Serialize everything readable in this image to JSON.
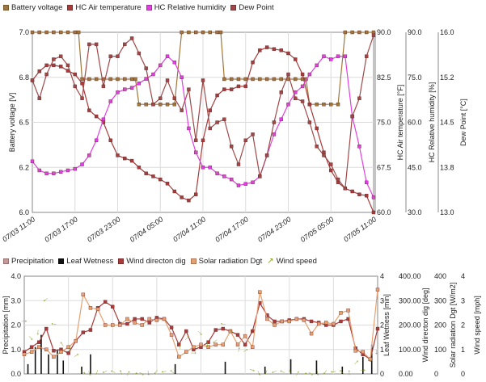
{
  "chart_data": [
    {
      "type": "line",
      "categories": [
        "07/03 11:00",
        "07/03 17:00",
        "07/03 23:00",
        "07/04 05:00",
        "07/04 11:00",
        "07/04 17:00",
        "07/04 23:00",
        "07/05 05:00",
        "07/05 11:00"
      ],
      "x_range_hours": [
        0,
        48
      ],
      "grid": true,
      "legend_position": "top",
      "axes": [
        {
          "id": "batt",
          "label": "Battery voltage [V]",
          "side": "left",
          "range": [
            6.0,
            7.0
          ],
          "ticks": [
            "7.0",
            "6.8",
            "6.5",
            "6.2",
            "6.0"
          ],
          "tick_values": [
            7.0,
            6.75,
            6.5,
            6.25,
            6.0
          ]
        },
        {
          "id": "temp",
          "label": "HC Air temperature [°F]",
          "side": "right",
          "range": [
            60,
            90
          ],
          "ticks": [
            "90.0",
            "82.5",
            "75.0",
            "67.5",
            "60.0"
          ]
        },
        {
          "id": "rh",
          "label": "HC Relative humidity [%]",
          "side": "right",
          "range": [
            30,
            90
          ],
          "ticks": [
            "90.0",
            "75.0",
            "60.0",
            "45.0",
            "30.0"
          ]
        },
        {
          "id": "dew",
          "label": "Dew Point [°C]",
          "side": "right",
          "range": [
            13.0,
            16.0
          ],
          "ticks": [
            "16.0",
            "15.2",
            "14.5",
            "13.8",
            "13.0"
          ]
        }
      ],
      "series": [
        {
          "name": "Battery voltage",
          "axis": "batt",
          "color": "#a0763c",
          "x": [
            0,
            1,
            2,
            3,
            4,
            5,
            6,
            6.5,
            7,
            8,
            9,
            10,
            11,
            12,
            13,
            14,
            14.5,
            15,
            16,
            17,
            18,
            19,
            20,
            21,
            22,
            23,
            24,
            25,
            26,
            26.5,
            27,
            28,
            29,
            30,
            31,
            32,
            33,
            34,
            35,
            36,
            37,
            38,
            38.5,
            39,
            40,
            41,
            42,
            43,
            44,
            45,
            46,
            47,
            48
          ],
          "y": [
            7.0,
            7.0,
            7.0,
            7.0,
            7.0,
            7.0,
            7.0,
            7.0,
            6.74,
            6.74,
            6.74,
            6.74,
            6.74,
            6.74,
            6.74,
            6.74,
            6.74,
            6.6,
            6.6,
            6.6,
            6.6,
            6.6,
            6.6,
            7.0,
            7.0,
            7.0,
            7.0,
            7.0,
            7.0,
            7.0,
            6.74,
            6.74,
            6.74,
            6.74,
            6.74,
            6.74,
            6.74,
            6.74,
            6.74,
            6.74,
            6.74,
            6.74,
            6.74,
            6.6,
            6.6,
            6.6,
            6.6,
            6.6,
            7.0,
            7.0,
            7.0,
            7.0,
            7.0
          ]
        },
        {
          "name": "HC Air temperature",
          "axis": "temp",
          "color": "#a83a3a",
          "x": [
            0,
            1,
            2,
            3,
            4,
            5,
            6,
            7,
            8,
            9,
            10,
            11,
            12,
            13,
            14,
            15,
            16,
            17,
            18,
            19,
            20,
            21,
            22,
            23,
            24,
            25,
            26,
            27,
            28,
            29,
            30,
            31,
            32,
            33,
            34,
            35,
            36,
            37,
            38,
            39,
            40,
            41,
            42,
            43,
            44,
            45,
            46,
            47,
            48
          ],
          "y": [
            82,
            83.5,
            84.5,
            84.5,
            84.3,
            83.6,
            83,
            81.5,
            77,
            76,
            75,
            72,
            69.5,
            69,
            68.6,
            67.5,
            66.5,
            66,
            65.5,
            64.8,
            63.5,
            62.5,
            62,
            63,
            72,
            77,
            79.5,
            80.5,
            80.5,
            81,
            81,
            85,
            87,
            87.5,
            87.2,
            87,
            86.5,
            85.5,
            83,
            78,
            74,
            70,
            67,
            65,
            64,
            63.5,
            63,
            62.8,
            60
          ]
        },
        {
          "name": "HC Relative humidity",
          "axis": "rh",
          "color": "#e040e0",
          "x": [
            0,
            1,
            2,
            3,
            4,
            5,
            6,
            7,
            8,
            9,
            10,
            11,
            12,
            13,
            14,
            15,
            16,
            17,
            18,
            19,
            20,
            21,
            22,
            23,
            24,
            25,
            26,
            27,
            28,
            29,
            30,
            31,
            32,
            33,
            34,
            35,
            36,
            37,
            38,
            39,
            40,
            41,
            42,
            43,
            44,
            45,
            46,
            47,
            48
          ],
          "y": [
            47,
            44,
            43,
            43,
            43.5,
            44,
            44.5,
            46,
            49,
            54,
            61,
            67,
            70,
            71,
            71.5,
            73,
            74.5,
            76,
            79,
            82,
            80,
            75,
            58,
            50,
            45,
            45,
            43,
            42,
            41,
            39,
            39.5,
            40,
            42,
            49,
            56,
            61,
            66,
            70,
            72,
            76,
            79,
            82,
            81,
            82,
            82,
            62,
            52,
            40,
            35
          ]
        },
        {
          "name": "Dew Point",
          "axis": "dew",
          "color": "#a04848",
          "x": [
            0,
            1,
            2,
            3,
            4,
            5,
            6,
            7,
            8,
            9,
            10,
            11,
            12,
            13,
            14,
            15,
            16,
            17,
            18,
            19,
            20,
            21,
            22,
            23,
            24,
            25,
            26,
            27,
            28,
            29,
            30,
            31,
            32,
            33,
            34,
            35,
            36,
            37,
            38,
            39,
            40,
            41,
            42,
            43,
            44,
            45,
            46,
            47,
            48
          ],
          "y": [
            15.2,
            14.9,
            15.3,
            15.55,
            15.6,
            15.45,
            15.1,
            14.9,
            15.8,
            15.8,
            15.1,
            15.6,
            15.6,
            15.8,
            15.9,
            15.65,
            15.4,
            14.8,
            14.9,
            15.2,
            14.9,
            14.7,
            15.05,
            14.2,
            15.2,
            14.4,
            14.5,
            14.55,
            14.1,
            13.8,
            14.2,
            14.3,
            13.6,
            13.95,
            14.5,
            15.0,
            15.3,
            14.9,
            14.85,
            14.5,
            14.1,
            13.95,
            13.8,
            13.55,
            13.4,
            14.6,
            14.9,
            15.6,
            15.95
          ]
        }
      ]
    },
    {
      "type": "bar",
      "categories": [
        "07/03 11:00",
        "07/03 17:00",
        "07/03 23:00",
        "07/04 05:00",
        "07/04 11:00",
        "07/04 17:00",
        "07/04 23:00",
        "07/05 05:00",
        "07/05 11:00"
      ],
      "x_range_hours": [
        0,
        48
      ],
      "grid": true,
      "legend_position": "top",
      "axes": [
        {
          "id": "precip",
          "label": "Precipitation [mm]",
          "side": "left",
          "range": [
            0,
            4
          ],
          "ticks": [
            "4.0",
            "3.0",
            "2.0",
            "1.0",
            "0.0"
          ]
        },
        {
          "id": "wet",
          "label": "Leaf Wetness [min]",
          "side": "right",
          "range": [
            0,
            4
          ],
          "ticks": [
            "4",
            "3",
            "2",
            "1",
            "0"
          ]
        },
        {
          "id": "dir",
          "label": "Wind directon dig [deg]",
          "side": "right",
          "range": [
            0,
            400
          ],
          "ticks": [
            "400.00",
            "300.00",
            "200.00",
            "100.00",
            "0.00"
          ]
        },
        {
          "id": "solar",
          "label": "Solar radiation Dgt [W/m2]",
          "side": "right",
          "range": [
            0,
            400
          ],
          "ticks": [
            "400",
            "300",
            "200",
            "100",
            "0"
          ]
        },
        {
          "id": "wind",
          "label": "Wind speed [mph]",
          "side": "right",
          "range": [
            0,
            4
          ],
          "ticks": [
            "4",
            "3",
            "2",
            "1",
            "0"
          ]
        }
      ],
      "series": [
        {
          "name": "Precipitation",
          "axis": "precip",
          "color": "#c89898",
          "x": [],
          "y": []
        },
        {
          "name": "Leaf Wetness",
          "axis": "wet",
          "color": "#111111",
          "x": [
            0.5,
            1.5,
            2.3,
            3.3,
            4.5,
            5.3,
            7.8,
            9.0,
            20.5,
            27.3,
            32.7,
            36.2,
            39.7,
            43.2,
            46.0,
            47.2
          ],
          "y": [
            0.4,
            1.1,
            1.6,
            0.8,
            1.0,
            0.55,
            0.3,
            0.8,
            0.4,
            0.5,
            0.3,
            0.6,
            0.55,
            0.3,
            0.7,
            1.2
          ]
        },
        {
          "name": "Wind directon dig",
          "axis": "dir",
          "color": "#a83a3a",
          "x": [
            0,
            1,
            2,
            3,
            4,
            5,
            6,
            7,
            8,
            9,
            10,
            11,
            12,
            13,
            14,
            15,
            16,
            17,
            18,
            19,
            20,
            21,
            22,
            23,
            24,
            25,
            26,
            27,
            28,
            29,
            30,
            31,
            32,
            33,
            34,
            35,
            36,
            37,
            38,
            39,
            40,
            41,
            42,
            43,
            44,
            45,
            46,
            47,
            48
          ],
          "y": [
            90,
            110,
            130,
            185,
            95,
            100,
            85,
            135,
            170,
            180,
            270,
            295,
            275,
            205,
            205,
            225,
            225,
            210,
            230,
            225,
            190,
            120,
            175,
            100,
            110,
            130,
            180,
            185,
            175,
            160,
            120,
            175,
            290,
            240,
            215,
            215,
            220,
            225,
            225,
            215,
            210,
            200,
            200,
            215,
            225,
            105,
            80,
            60,
            185
          ]
        },
        {
          "name": "Solar radiation Dgt",
          "axis": "solar",
          "color": "#e8a070",
          "x": [
            0,
            1,
            2,
            3,
            4,
            5,
            6,
            7,
            8,
            9,
            10,
            11,
            12,
            13,
            14,
            15,
            16,
            17,
            18,
            19,
            20,
            21,
            22,
            23,
            24,
            25,
            26,
            27,
            28,
            29,
            30,
            31,
            32,
            33,
            34,
            35,
            36,
            37,
            38,
            39,
            40,
            41,
            42,
            43,
            44,
            45,
            46,
            47,
            48
          ],
          "y": [
            80,
            90,
            110,
            100,
            70,
            90,
            110,
            135,
            325,
            270,
            265,
            200,
            200,
            200,
            225,
            210,
            200,
            225,
            220,
            225,
            160,
            70,
            90,
            110,
            120,
            110,
            120,
            120,
            175,
            120,
            155,
            110,
            335,
            225,
            200,
            215,
            215,
            225,
            220,
            165,
            205,
            210,
            205,
            250,
            260,
            95,
            90,
            60,
            345
          ]
        },
        {
          "name": "Wind speed",
          "axis": "wind",
          "color": "#8a9a20",
          "x": [
            0,
            1,
            2,
            3,
            4,
            5,
            6,
            7,
            8,
            9,
            10,
            11,
            12,
            13,
            14,
            15,
            16,
            17,
            18,
            19,
            20,
            21,
            22,
            23,
            24,
            25,
            26,
            27,
            28,
            29,
            30,
            31,
            32,
            33,
            34,
            35,
            36,
            37,
            38,
            39,
            40,
            41,
            42,
            43,
            44,
            45,
            46,
            47,
            48
          ],
          "y": [
            2.2,
            1.5,
            1.7,
            3.0,
            2.0,
            1.2,
            1.0,
            0.8,
            0.1,
            0.05,
            0.05,
            0.05,
            0.05,
            0.05,
            0.05,
            0.05,
            0.05,
            0.05,
            0.05,
            0.05,
            0.05,
            1.1,
            1.5,
            0.9,
            1.7,
            1.2,
            1.3,
            2.0,
            1.7,
            1.0,
            1.0,
            0.2,
            0.05,
            0.05,
            0.05,
            0.05,
            0.05,
            0.05,
            0.05,
            0.05,
            0.05,
            0.05,
            0.05,
            0.05,
            0.05,
            0.5,
            0.2,
            0.6,
            0.9
          ]
        }
      ]
    }
  ]
}
